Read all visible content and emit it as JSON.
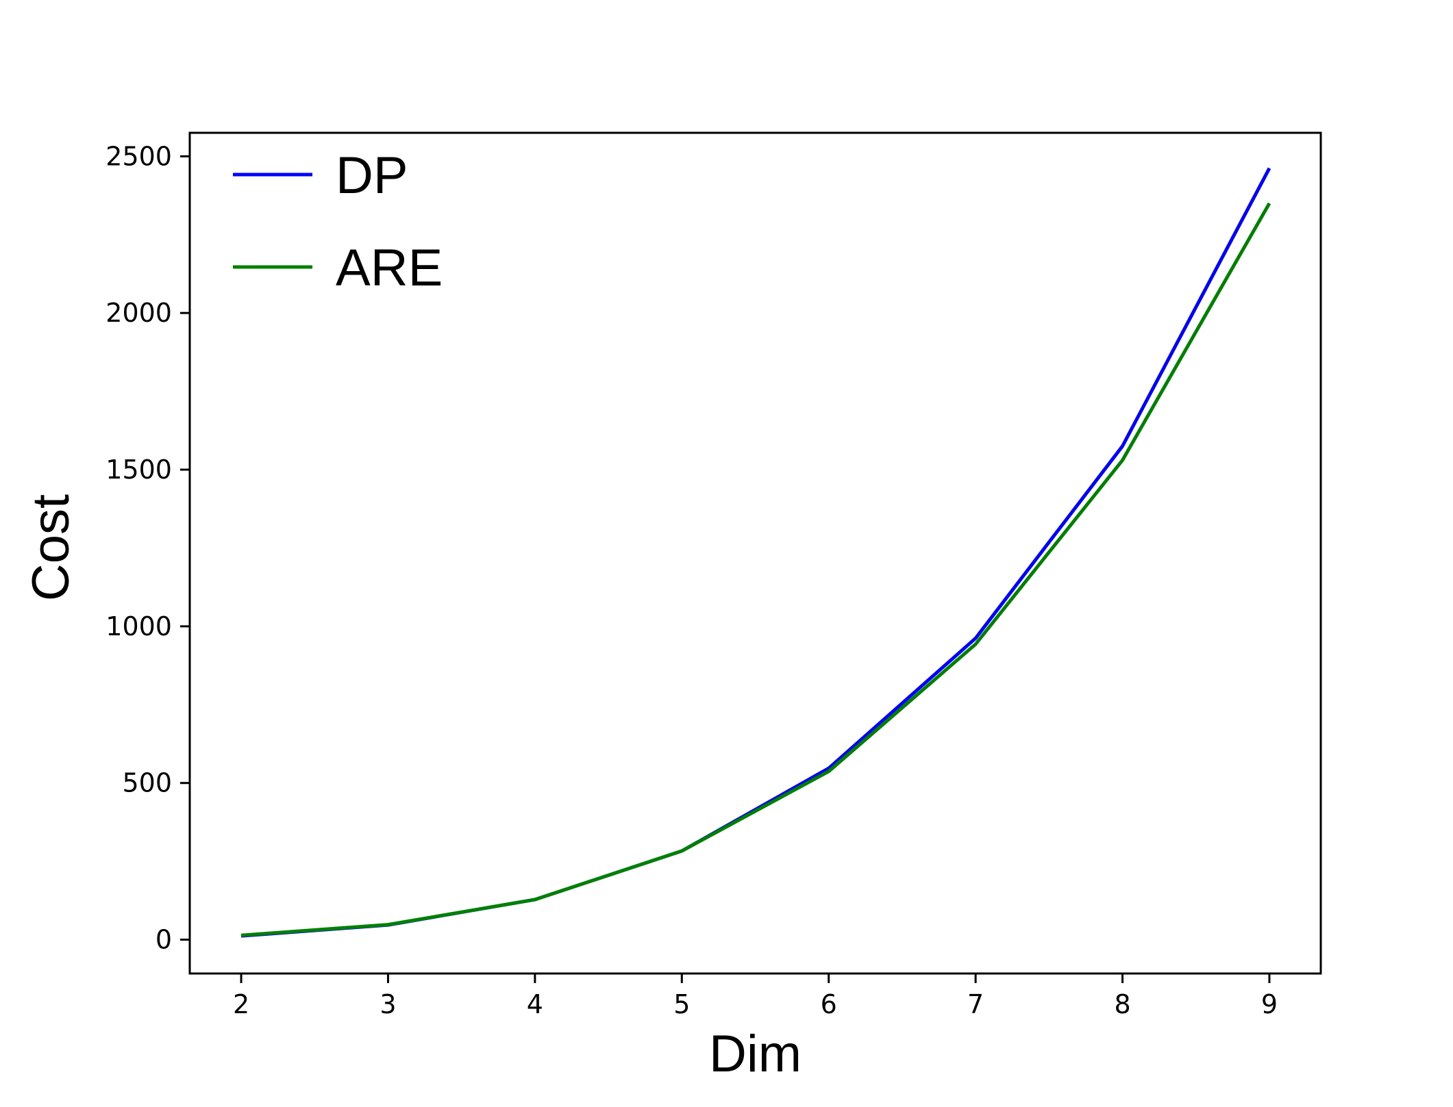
{
  "chart_data": {
    "type": "line",
    "x": [
      2,
      3,
      4,
      5,
      6,
      7,
      8,
      9
    ],
    "series": [
      {
        "name": "DP",
        "color": "#0000ff",
        "values": [
          12,
          47,
          128,
          283,
          547,
          962,
          1575,
          2462
        ]
      },
      {
        "name": "ARE",
        "color": "#008000",
        "values": [
          14,
          48,
          128,
          283,
          537,
          943,
          1530,
          2350
        ]
      }
    ],
    "xlabel": "Dim",
    "ylabel": "Cost",
    "xlim": [
      1.65,
      9.35
    ],
    "ylim": [
      -108,
      2575
    ],
    "xticks": [
      2,
      3,
      4,
      5,
      6,
      7,
      8,
      9
    ],
    "yticks": [
      0,
      500,
      1000,
      1500,
      2000,
      2500
    ],
    "xtick_labels": [
      "2",
      "3",
      "4",
      "5",
      "6",
      "7",
      "8",
      "9"
    ],
    "ytick_labels": [
      "0",
      "500",
      "1000",
      "1500",
      "2000",
      "2500"
    ],
    "grid": false,
    "legend_position": "top-left",
    "axes_color": "#000000"
  }
}
